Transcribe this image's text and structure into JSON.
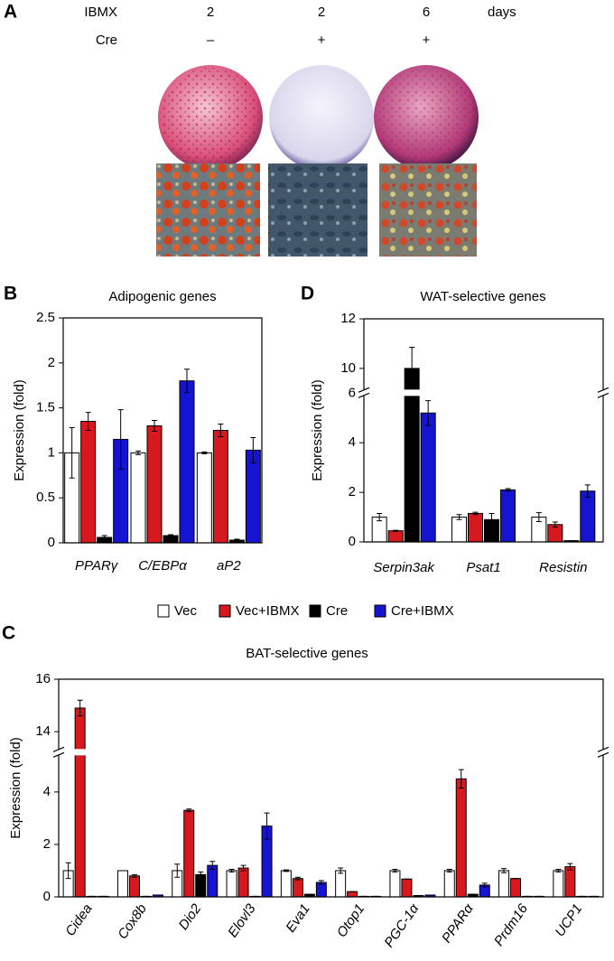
{
  "panel_a": {
    "label": "A",
    "rows": [
      {
        "label": "IBMX",
        "values": [
          2,
          2,
          6
        ],
        "unit": "days"
      },
      {
        "label": "Cre",
        "values": [
          "–",
          "+",
          "+"
        ]
      }
    ]
  },
  "legend": [
    {
      "name": "Vec",
      "color": "#ffffff"
    },
    {
      "name": "Vec+IBMX",
      "color": "#d7191f"
    },
    {
      "name": "Cre",
      "color": "#000000"
    },
    {
      "name": "Cre+IBMX",
      "color": "#1414d2"
    }
  ],
  "chart_data": [
    {
      "type": "bar",
      "panel": "B",
      "title": "Adipogenic genes",
      "ylabel": "Expression (fold)",
      "categories": [
        "PPARγ",
        "C/EBPα",
        "aP2"
      ],
      "series": [
        {
          "color": "#ffffff",
          "values": [
            1.0,
            1.0,
            1.0
          ],
          "errors": [
            0.28,
            0.02,
            0.01
          ]
        },
        {
          "color": "#d7191f",
          "values": [
            1.35,
            1.3,
            1.25
          ],
          "errors": [
            0.1,
            0.06,
            0.07
          ]
        },
        {
          "color": "#000000",
          "values": [
            0.06,
            0.08,
            0.03
          ],
          "errors": [
            0.02,
            0.01,
            0.01
          ]
        },
        {
          "color": "#1414d2",
          "values": [
            1.15,
            1.8,
            1.03
          ],
          "errors": [
            0.33,
            0.13,
            0.14
          ]
        }
      ],
      "ylim": [
        0,
        2.5
      ],
      "yticks": [
        0,
        0.5,
        1,
        1.5,
        2,
        2.5
      ]
    },
    {
      "type": "bar",
      "panel": "D",
      "title": "WAT-selective genes",
      "ylabel": "Expression (fold)",
      "categories": [
        "Serpin3ak",
        "Psat1",
        "Resistin"
      ],
      "series": [
        {
          "color": "#ffffff",
          "values": [
            1.0,
            1.0,
            1.0
          ],
          "errors": [
            0.15,
            0.1,
            0.18
          ]
        },
        {
          "color": "#d7191f",
          "values": [
            0.45,
            1.15,
            0.7
          ],
          "errors": [
            0.02,
            0.05,
            0.1
          ]
        },
        {
          "color": "#000000",
          "values": [
            10.0,
            0.9,
            0.05
          ],
          "errors": [
            0.85,
            0.25,
            0.0
          ]
        },
        {
          "color": "#1414d2",
          "values": [
            5.2,
            2.1,
            2.05
          ],
          "errors": [
            0.5,
            0.05,
            0.25
          ]
        }
      ],
      "ylim": [
        0,
        12
      ],
      "ybreak": [
        6,
        9
      ],
      "yticks": [
        0,
        2,
        4,
        6,
        10,
        12
      ]
    },
    {
      "type": "bar",
      "panel": "C",
      "title": "BAT-selective genes",
      "ylabel": "Expression (fold)",
      "categories": [
        "Cidea",
        "Cox8b",
        "Dio2",
        "Elovl3",
        "Eva1",
        "Otop1",
        "PGC-1α",
        "PPARα",
        "Prdm16",
        "UCP1"
      ],
      "series": [
        {
          "color": "#ffffff",
          "values": [
            1.0,
            1.0,
            1.0,
            1.0,
            1.0,
            1.0,
            1.0,
            1.0,
            1.0,
            1.0
          ],
          "errors": [
            0.3,
            0.0,
            0.25,
            0.05,
            0.03,
            0.1,
            0.05,
            0.05,
            0.08,
            0.05
          ]
        },
        {
          "color": "#d7191f",
          "values": [
            14.9,
            0.8,
            3.3,
            1.1,
            0.7,
            0.2,
            0.68,
            4.5,
            0.7,
            1.15
          ],
          "errors": [
            0.3,
            0.05,
            0.05,
            0.1,
            0.05,
            0.0,
            0.0,
            0.35,
            0.0,
            0.12
          ]
        },
        {
          "color": "#000000",
          "values": [
            0.02,
            0.02,
            0.85,
            0.02,
            0.1,
            0.02,
            0.05,
            0.1,
            0.02,
            0.02
          ],
          "errors": [
            0,
            0,
            0.1,
            0,
            0,
            0,
            0,
            0,
            0,
            0
          ]
        },
        {
          "color": "#1414d2",
          "values": [
            0.02,
            0.07,
            1.2,
            2.7,
            0.55,
            0.02,
            0.07,
            0.45,
            0.02,
            0.02
          ],
          "errors": [
            0,
            0,
            0.15,
            0.5,
            0.07,
            0,
            0,
            0.07,
            0,
            0
          ]
        }
      ],
      "ylim": [
        0,
        16
      ],
      "ybreak": [
        5.5,
        13.2
      ],
      "yticks": [
        0,
        2,
        4,
        14,
        16
      ]
    }
  ]
}
